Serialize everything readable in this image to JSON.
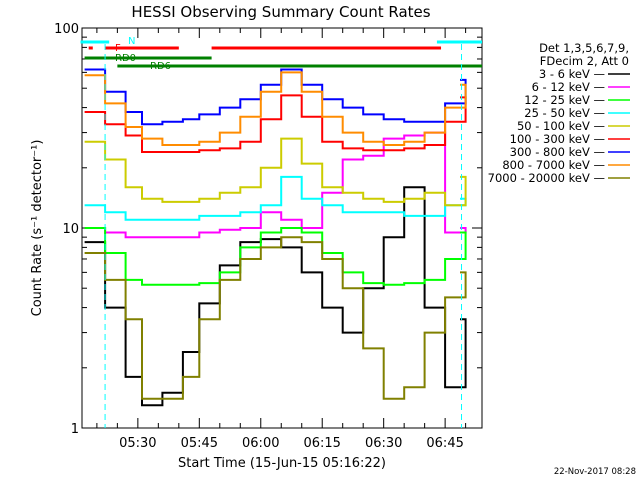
{
  "chart_data": {
    "type": "line",
    "title": "HESSI Observing Summary Count Rates",
    "xlabel": "Start Time (15-Jun-15 05:16:22)",
    "ylabel": "Count Rate (s⁻¹ detector⁻¹)",
    "yscale": "log",
    "ylim": [
      1,
      100
    ],
    "xlim": [
      "05:16:22",
      "06:54:00"
    ],
    "x_ticks": [
      "05:30",
      "05:45",
      "06:00",
      "06:15",
      "06:30",
      "06:45"
    ],
    "y_ticks": [
      "1",
      "10",
      "100"
    ],
    "grid": false,
    "legend_position": "right",
    "legend_header": [
      "Det 1,3,5,6,7,9,",
      "FDecim 2, Att 0"
    ],
    "series": [
      {
        "name": "3 - 6 keV",
        "color": "#000000",
        "x": [
          "05:17",
          "05:22",
          "05:27",
          "05:31",
          "05:36",
          "05:41",
          "05:45",
          "05:50",
          "05:55",
          "06:00",
          "06:05",
          "06:10",
          "06:15",
          "06:20",
          "06:25",
          "06:30",
          "06:35",
          "06:40",
          "06:45",
          "06:50"
        ],
        "values": [
          8.5,
          4,
          1.8,
          1.3,
          1.5,
          2.4,
          4.2,
          6.5,
          8.5,
          8.8,
          8,
          6,
          4,
          3,
          5,
          9,
          16,
          4,
          1.6,
          3.5
        ]
      },
      {
        "name": "6 - 12 keV",
        "color": "#ff00ff",
        "x": [
          "05:17",
          "05:22",
          "05:27",
          "05:31",
          "05:36",
          "05:41",
          "05:45",
          "05:50",
          "05:55",
          "06:00",
          "06:05",
          "06:10",
          "06:15",
          "06:20",
          "06:25",
          "06:30",
          "06:35",
          "06:40",
          "06:45",
          "06:50"
        ],
        "values": [
          10,
          9.5,
          9,
          9,
          9,
          9,
          9.5,
          9.8,
          10,
          12,
          11,
          10,
          15,
          22,
          23,
          28,
          29,
          30,
          9.5,
          10
        ]
      },
      {
        "name": "12 - 25 keV",
        "color": "#00ff00",
        "x": [
          "05:17",
          "05:22",
          "05:27",
          "05:31",
          "05:36",
          "05:41",
          "05:45",
          "05:50",
          "05:55",
          "06:00",
          "06:05",
          "06:10",
          "06:15",
          "06:20",
          "06:25",
          "06:30",
          "06:35",
          "06:40",
          "06:45",
          "06:50"
        ],
        "values": [
          10,
          7.5,
          5.5,
          5.2,
          5.2,
          5.2,
          5.3,
          6,
          8,
          9.5,
          10,
          9.5,
          7.5,
          6,
          5.3,
          5.2,
          5.3,
          5.5,
          7,
          9.5
        ]
      },
      {
        "name": "25 - 50 keV",
        "color": "#00ffff",
        "x": [
          "05:17",
          "05:22",
          "05:27",
          "05:31",
          "05:36",
          "05:41",
          "05:45",
          "05:50",
          "05:55",
          "06:00",
          "06:05",
          "06:10",
          "06:15",
          "06:20",
          "06:25",
          "06:30",
          "06:35",
          "06:40",
          "06:45",
          "06:50"
        ],
        "values": [
          13,
          12,
          11,
          11,
          11,
          11,
          11.5,
          11.5,
          12,
          13,
          18,
          14,
          13,
          12,
          12,
          12,
          11.5,
          11.5,
          13,
          14
        ]
      },
      {
        "name": "50 - 100 keV",
        "color": "#cccc00",
        "x": [
          "05:17",
          "05:22",
          "05:27",
          "05:31",
          "05:36",
          "05:41",
          "05:45",
          "05:50",
          "05:55",
          "06:00",
          "06:05",
          "06:10",
          "06:15",
          "06:20",
          "06:25",
          "06:30",
          "06:35",
          "06:40",
          "06:45",
          "06:50"
        ],
        "values": [
          27,
          22,
          16,
          14,
          13.5,
          13.5,
          14,
          15,
          16,
          20,
          28,
          21,
          16,
          15,
          14,
          13.5,
          14,
          15,
          13,
          18
        ]
      },
      {
        "name": "100 - 300 keV",
        "color": "#ff0000",
        "x": [
          "05:17",
          "05:22",
          "05:27",
          "05:31",
          "05:36",
          "05:41",
          "05:45",
          "05:50",
          "05:55",
          "06:00",
          "06:05",
          "06:10",
          "06:15",
          "06:20",
          "06:25",
          "06:30",
          "06:35",
          "06:40",
          "06:45",
          "06:50"
        ],
        "values": [
          38,
          33,
          29,
          24,
          24,
          24,
          24.5,
          25,
          27,
          35,
          46,
          36,
          27,
          25,
          24.5,
          24.5,
          25,
          26,
          34,
          45
        ]
      },
      {
        "name": "300 - 800 keV",
        "color": "#0000ff",
        "x": [
          "05:17",
          "05:22",
          "05:27",
          "05:31",
          "05:36",
          "05:41",
          "05:45",
          "05:50",
          "05:55",
          "06:00",
          "06:05",
          "06:10",
          "06:15",
          "06:20",
          "06:25",
          "06:30",
          "06:35",
          "06:40",
          "06:45",
          "06:50"
        ],
        "values": [
          62,
          48,
          38,
          33,
          34,
          35,
          37,
          40,
          44,
          52,
          62,
          52,
          44,
          40,
          37,
          35,
          34,
          34,
          42,
          55
        ]
      },
      {
        "name": "800 - 7000 keV",
        "color": "#ff8c00",
        "x": [
          "05:17",
          "05:22",
          "05:27",
          "05:31",
          "05:36",
          "05:41",
          "05:45",
          "05:50",
          "05:55",
          "06:00",
          "06:05",
          "06:10",
          "06:15",
          "06:20",
          "06:25",
          "06:30",
          "06:35",
          "06:40",
          "06:45",
          "06:50"
        ],
        "values": [
          58,
          42,
          32,
          28,
          26,
          26,
          27,
          30,
          36,
          48,
          60,
          48,
          36,
          30,
          27,
          26,
          27,
          30,
          40,
          52
        ]
      },
      {
        "name": "7000 - 20000 keV",
        "color": "#808000",
        "x": [
          "05:17",
          "05:22",
          "05:27",
          "05:31",
          "05:36",
          "05:41",
          "05:45",
          "05:50",
          "05:55",
          "06:00",
          "06:05",
          "06:10",
          "06:15",
          "06:20",
          "06:25",
          "06:30",
          "06:35",
          "06:40",
          "06:45",
          "06:50"
        ],
        "values": [
          7.5,
          5.5,
          3.5,
          1.4,
          1.4,
          1.8,
          3.5,
          5.5,
          7,
          8,
          9,
          8.5,
          7,
          5,
          2.5,
          1.4,
          1.6,
          3,
          4.5,
          6
        ]
      }
    ],
    "flags": [
      {
        "name": "N",
        "color": "#00ffff",
        "intervals": [
          [
            "05:16",
            "05:23"
          ],
          [
            "06:43",
            "06:54"
          ]
        ]
      },
      {
        "name": "F",
        "color": "#ff0000",
        "intervals": [
          [
            "05:18",
            "05:19"
          ],
          [
            "05:22",
            "05:40"
          ],
          [
            "05:48",
            "06:44"
          ]
        ]
      },
      {
        "name": "RD0",
        "color": "#008000",
        "intervals": [
          [
            "05:17",
            "05:48"
          ]
        ]
      },
      {
        "name": "RD6",
        "color": "#008000",
        "intervals": [
          [
            "05:25",
            "06:54"
          ]
        ]
      }
    ]
  },
  "timestamp": "22-Nov-2017 08:28"
}
